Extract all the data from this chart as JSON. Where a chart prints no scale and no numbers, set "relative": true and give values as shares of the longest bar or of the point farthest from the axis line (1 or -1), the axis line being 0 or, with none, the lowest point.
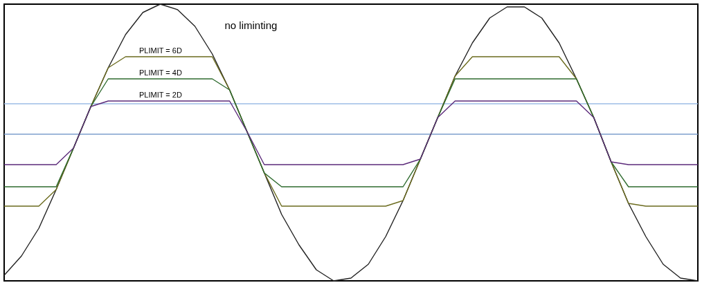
{
  "chart_data": {
    "type": "line",
    "relative": true,
    "categories": [
      null,
      null,
      null,
      null,
      null,
      null,
      null,
      null,
      null,
      null,
      null,
      null,
      null,
      null,
      null,
      null,
      null,
      null,
      null,
      null,
      null,
      null,
      null,
      null,
      null,
      null,
      null,
      null,
      null,
      null,
      null,
      null,
      null,
      null,
      null,
      null,
      null,
      null,
      null,
      null,
      null
    ],
    "series": [
      {
        "color": "#222222",
        "values": [
          0.02,
          0.09,
          0.19,
          0.33,
          0.48,
          0.63,
          0.77,
          0.89,
          0.97,
          1.0,
          0.98,
          0.92,
          0.82,
          0.69,
          0.54,
          0.39,
          0.24,
          0.13,
          0.04,
          0.0,
          0.01,
          0.06,
          0.16,
          0.29,
          0.44,
          0.59,
          0.74,
          0.86,
          0.95,
          0.99,
          0.99,
          0.95,
          0.86,
          0.73,
          0.59,
          0.43,
          0.28,
          0.16,
          0.06,
          0.01,
          0.0
        ]
      },
      {
        "color": "#6b6b1e",
        "values": [
          0.27,
          0.27,
          0.27,
          0.33,
          0.48,
          0.63,
          0.77,
          0.81,
          0.81,
          0.81,
          0.81,
          0.81,
          0.81,
          0.69,
          0.54,
          0.39,
          0.27,
          0.27,
          0.27,
          0.27,
          0.27,
          0.27,
          0.27,
          0.29,
          0.44,
          0.59,
          0.74,
          0.81,
          0.81,
          0.81,
          0.81,
          0.81,
          0.81,
          0.73,
          0.59,
          0.43,
          0.28,
          0.27,
          0.27,
          0.27,
          0.27
        ]
      },
      {
        "color": "#2e6b2e",
        "values": [
          0.34,
          0.34,
          0.34,
          0.34,
          0.48,
          0.63,
          0.73,
          0.73,
          0.73,
          0.73,
          0.73,
          0.73,
          0.73,
          0.69,
          0.54,
          0.39,
          0.34,
          0.34,
          0.34,
          0.34,
          0.34,
          0.34,
          0.34,
          0.34,
          0.44,
          0.59,
          0.73,
          0.73,
          0.73,
          0.73,
          0.73,
          0.73,
          0.73,
          0.73,
          0.59,
          0.43,
          0.34,
          0.34,
          0.34,
          0.34,
          0.34
        ]
      },
      {
        "color": "#5b2a7a",
        "values": [
          0.42,
          0.42,
          0.42,
          0.42,
          0.48,
          0.63,
          0.65,
          0.65,
          0.65,
          0.65,
          0.65,
          0.65,
          0.65,
          0.65,
          0.54,
          0.42,
          0.42,
          0.42,
          0.42,
          0.42,
          0.42,
          0.42,
          0.42,
          0.42,
          0.44,
          0.59,
          0.65,
          0.65,
          0.65,
          0.65,
          0.65,
          0.65,
          0.65,
          0.65,
          0.59,
          0.43,
          0.42,
          0.42,
          0.42,
          0.42,
          0.42
        ]
      }
    ],
    "ref_lines": [
      {
        "axis": "y",
        "value": 0.64,
        "color": "#9dbde6"
      },
      {
        "axis": "y",
        "value": 0.53,
        "color": "#7d9fcc"
      }
    ],
    "annotations": [
      "no liminting",
      {
        "text": "PLIMIT = 6D",
        "y": 0.81
      },
      {
        "text": "PLIMIT = 4D",
        "y": 0.73
      },
      {
        "text": "PLIMIT = 2D",
        "y": 0.65
      }
    ]
  }
}
